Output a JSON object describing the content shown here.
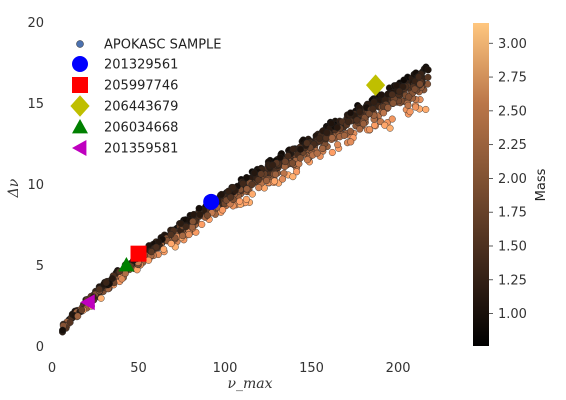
{
  "chart_data": {
    "type": "scatter",
    "title": "",
    "xlabel": "ν_max",
    "ylabel": "Δν",
    "xlim": [
      0,
      230
    ],
    "ylim": [
      0,
      20
    ],
    "xticks": [
      "0",
      "50",
      "100",
      "150",
      "200"
    ],
    "yticks": [
      "0",
      "5",
      "10",
      "15",
      "20"
    ],
    "grid": false,
    "legend_position": "top-left",
    "colorbar": {
      "label": "Mass",
      "range": [
        0.76,
        3.15
      ],
      "ticks": [
        "1.00",
        "1.25",
        "1.50",
        "1.75",
        "2.00",
        "2.25",
        "2.50",
        "2.75",
        "3.00"
      ],
      "colormap": "copper"
    },
    "sample": {
      "name": "APOKASC SAMPLE",
      "color": "#4c72b0",
      "x_range": [
        5,
        218
      ],
      "relation": "dnu ≈ 0.263 * numax^0.77"
    },
    "highlighted": [
      {
        "name": "201329561",
        "x": 92,
        "y": 8.9,
        "marker": "circle",
        "color": "#0000ff"
      },
      {
        "name": "205997746",
        "x": 50,
        "y": 5.7,
        "marker": "square",
        "color": "#ff0000"
      },
      {
        "name": "206443679",
        "x": 187,
        "y": 16.1,
        "marker": "diamond",
        "color": "#bfbf00"
      },
      {
        "name": "206034668",
        "x": 43,
        "y": 5.0,
        "marker": "triangle-up",
        "color": "#008000"
      },
      {
        "name": "201359581",
        "x": 21,
        "y": 2.7,
        "marker": "triangle-left",
        "color": "#bf00bf"
      }
    ]
  }
}
